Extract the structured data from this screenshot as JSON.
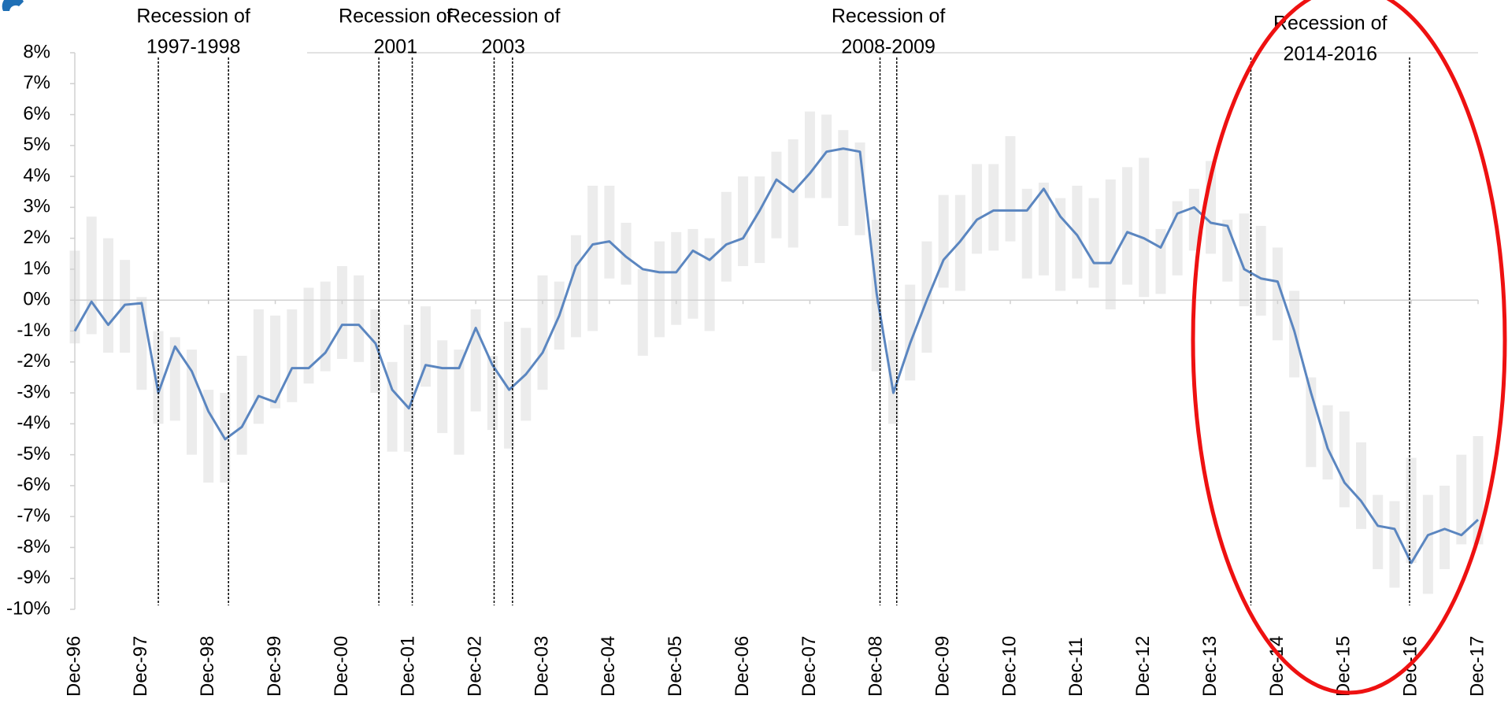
{
  "chart_data": {
    "type": "line",
    "categories": [
      "Dec-96",
      null,
      null,
      null,
      "Dec-97",
      null,
      null,
      null,
      "Dec-98",
      null,
      null,
      null,
      "Dec-99",
      null,
      null,
      null,
      "Dec-00",
      null,
      null,
      null,
      "Dec-01",
      null,
      null,
      null,
      "Dec-02",
      null,
      null,
      null,
      "Dec-03",
      null,
      null,
      null,
      "Dec-04",
      null,
      null,
      null,
      "Dec-05",
      null,
      null,
      null,
      "Dec-06",
      null,
      null,
      null,
      "Dec-07",
      null,
      null,
      null,
      "Dec-08",
      null,
      null,
      null,
      "Dec-09",
      null,
      null,
      null,
      "Dec-10",
      null,
      null,
      null,
      "Dec-11",
      null,
      null,
      null,
      "Dec-12",
      null,
      null,
      null,
      "Dec-13",
      null,
      null,
      null,
      "Dec-14",
      null,
      null,
      null,
      "Dec-15",
      null,
      null,
      null,
      "Dec-16",
      null,
      null,
      null,
      "Dec-17"
    ],
    "series": [
      {
        "color": "#5b86c0",
        "values": [
          -1.0,
          -0.05,
          -0.8,
          -0.15,
          -0.1,
          -3.0,
          -1.5,
          -2.3,
          -3.6,
          -4.5,
          -4.1,
          -3.1,
          -3.3,
          -2.2,
          -2.2,
          -1.7,
          -0.8,
          -0.8,
          -1.4,
          -2.9,
          -3.5,
          -2.1,
          -2.2,
          -2.2,
          -0.9,
          -2.1,
          -2.9,
          -2.4,
          -1.7,
          -0.5,
          1.1,
          1.8,
          1.9,
          1.4,
          1.0,
          0.9,
          0.9,
          1.6,
          1.3,
          1.8,
          2.0,
          2.9,
          3.9,
          3.5,
          4.1,
          4.8,
          4.9,
          4.8,
          0.2,
          -3.0,
          -1.4,
          0.0,
          1.3,
          1.9,
          2.6,
          2.9,
          2.9,
          2.9,
          3.6,
          2.7,
          2.1,
          1.2,
          1.2,
          2.2,
          2.0,
          1.7,
          2.8,
          3.0,
          2.5,
          2.4,
          1.0,
          0.7,
          0.6,
          -1.0,
          -3.0,
          -4.8,
          -5.9,
          -6.5,
          -7.3,
          -7.4,
          -8.5,
          -7.6,
          -7.4,
          -7.6,
          -7.1
        ]
      }
    ],
    "ranges": {
      "color": "#ececec",
      "low": [
        -1.4,
        -1.1,
        -1.7,
        -1.7,
        -2.9,
        -4.0,
        -3.9,
        -5.0,
        -5.9,
        -5.9,
        -5.0,
        -4.0,
        -3.5,
        -3.3,
        -2.7,
        -2.3,
        -1.9,
        -2.0,
        -3.0,
        -4.9,
        -4.9,
        -2.8,
        -4.3,
        -5.0,
        -3.6,
        -4.2,
        -4.8,
        -3.9,
        -2.9,
        -1.6,
        -1.2,
        -1.0,
        0.7,
        0.5,
        -1.8,
        -1.2,
        -0.8,
        -0.6,
        -1.0,
        0.6,
        1.1,
        1.2,
        2.0,
        1.7,
        3.3,
        3.3,
        2.4,
        2.1,
        -2.3,
        -4.0,
        -2.6,
        -1.7,
        0.4,
        0.3,
        1.5,
        1.6,
        1.9,
        0.7,
        0.8,
        0.3,
        0.7,
        0.4,
        -0.3,
        0.5,
        0.1,
        0.2,
        0.8,
        1.6,
        1.5,
        0.6,
        -0.2,
        -0.5,
        -1.3,
        -2.5,
        -5.4,
        -5.8,
        -6.7,
        -7.4,
        -8.7,
        -9.3,
        -8.5,
        -9.5,
        -8.7,
        -7.9,
        -7.9
      ],
      "high": [
        1.6,
        2.7,
        2.0,
        1.3,
        0.1,
        -1.0,
        -1.2,
        -1.6,
        -2.9,
        -3.0,
        -1.8,
        -0.3,
        -0.5,
        -0.3,
        0.4,
        0.6,
        1.1,
        0.8,
        -0.3,
        -2.0,
        -0.8,
        -0.2,
        -1.3,
        -1.6,
        -0.3,
        -1.8,
        -0.7,
        -0.9,
        0.8,
        0.6,
        2.1,
        3.7,
        3.7,
        2.5,
        1.0,
        1.9,
        2.2,
        2.3,
        2.0,
        3.5,
        4.0,
        4.0,
        4.8,
        5.2,
        6.1,
        6.0,
        5.5,
        5.1,
        2.6,
        -1.3,
        0.5,
        1.9,
        3.4,
        3.4,
        4.4,
        4.4,
        5.3,
        3.6,
        3.8,
        3.3,
        3.7,
        3.3,
        3.9,
        4.3,
        4.6,
        2.3,
        3.2,
        3.6,
        4.5,
        2.6,
        2.8,
        2.4,
        1.7,
        0.3,
        -2.5,
        -3.4,
        -3.6,
        -4.6,
        -6.3,
        -6.5,
        -5.1,
        -6.3,
        -6.0,
        -5.0,
        -4.4
      ]
    },
    "recessions": [
      {
        "label": [
          "Recession of",
          "1997-1998"
        ],
        "start": 5.0,
        "end": 9.2
      },
      {
        "label": [
          "Recession of",
          "2001"
        ],
        "start": 18.2,
        "end": 20.2
      },
      {
        "label": [
          "Recession of",
          "2003"
        ],
        "start": 25.1,
        "end": 26.2
      },
      {
        "label": [
          "Recession of",
          "2008-2009"
        ],
        "start": 48.2,
        "end": 49.2
      },
      {
        "label": [
          "Recession of",
          "2014-2016"
        ],
        "start": 70.4,
        "end": 79.9
      }
    ],
    "ylim": [
      -10,
      8
    ],
    "yticks": [
      {
        "value": -10,
        "label": "-10%"
      },
      {
        "value": -9,
        "label": "-9%"
      },
      {
        "value": -8,
        "label": "-8%"
      },
      {
        "value": -7,
        "label": "-7%"
      },
      {
        "value": -6,
        "label": "-6%"
      },
      {
        "value": -5,
        "label": "-5%"
      },
      {
        "value": -4,
        "label": "-4%"
      },
      {
        "value": -3,
        "label": "-3%"
      },
      {
        "value": -2,
        "label": "-2%"
      },
      {
        "value": -1,
        "label": "-1%"
      },
      {
        "value": 0,
        "label": "0%"
      },
      {
        "value": 1,
        "label": "1%"
      },
      {
        "value": 2,
        "label": "2%"
      },
      {
        "value": 3,
        "label": "3%"
      },
      {
        "value": 4,
        "label": "4%"
      },
      {
        "value": 5,
        "label": "5%"
      },
      {
        "value": 6,
        "label": "6%"
      },
      {
        "value": 7,
        "label": "7%"
      },
      {
        "value": 8,
        "label": "8%"
      }
    ]
  }
}
